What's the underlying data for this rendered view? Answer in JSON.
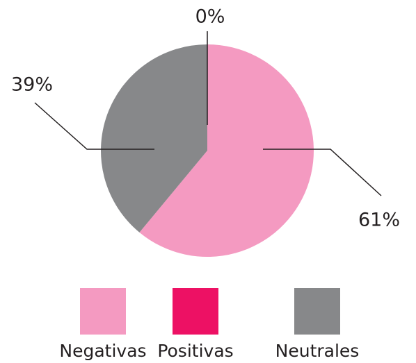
{
  "chart_data": {
    "type": "pie",
    "categories": [
      "Negativas",
      "Positivas",
      "Neutrales"
    ],
    "values": [
      61,
      0,
      39
    ],
    "value_labels": [
      "61%",
      "0%",
      "39%"
    ],
    "colors": [
      "#f49ac1",
      "#ed1164",
      "#87888a"
    ]
  }
}
